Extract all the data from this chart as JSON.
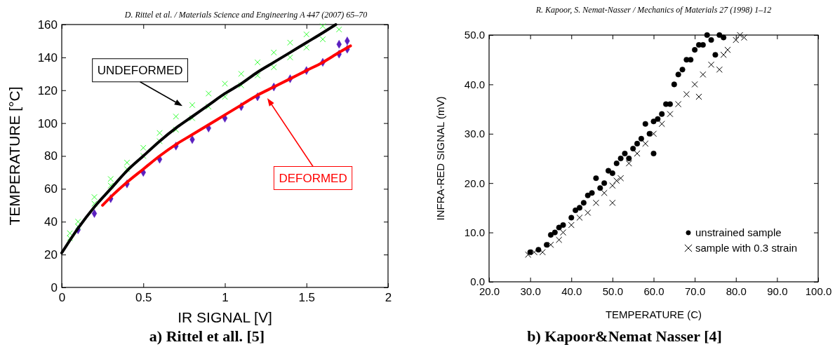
{
  "chart_data": [
    {
      "type": "scatter",
      "title": "a) Rittel et all. [5]",
      "subtitle": "D. Rittel et al. / Materials Science and Engineering A 447 (2007) 65–70",
      "xlabel": "IR SIGNAL [V]",
      "ylabel": "TEMPERATURE [°C]",
      "xlim": [
        0,
        2
      ],
      "ylim": [
        0,
        160
      ],
      "xticks": [
        0,
        0.5,
        1,
        1.5,
        2
      ],
      "yticks": [
        0,
        20,
        40,
        60,
        80,
        100,
        120,
        140,
        160
      ],
      "grid": false,
      "legend": false,
      "annotations": [
        "UNDEFORMED",
        "DEFORMED"
      ],
      "series": [
        {
          "color": "#33ff33",
          "marker": "cross",
          "x": [
            0.05,
            0.1,
            0.2,
            0.3,
            0.4,
            0.5,
            0.6,
            0.7,
            0.8,
            0.9,
            1.0,
            1.1,
            1.2,
            1.3,
            1.4,
            1.5,
            1.6,
            0.05,
            0.1,
            0.2,
            0.3,
            0.4,
            0.5,
            0.6,
            0.7,
            0.8,
            0.9,
            1.0,
            1.1,
            1.2,
            1.3,
            1.4,
            1.5,
            1.6,
            1.7
          ],
          "values": [
            33,
            40,
            55,
            66,
            76,
            85,
            94,
            104,
            111,
            118,
            124,
            130,
            137,
            143,
            149,
            154,
            159,
            30,
            37,
            51,
            62,
            72,
            80,
            89,
            96,
            103,
            110,
            116,
            123,
            129,
            134,
            140,
            146,
            151,
            157
          ]
        },
        {
          "color": "#5a1fbf",
          "marker": "diamond",
          "x": [
            0.1,
            0.2,
            0.3,
            0.4,
            0.5,
            0.6,
            0.7,
            0.8,
            0.9,
            1.0,
            1.1,
            1.2,
            1.3,
            1.4,
            1.5,
            1.6,
            1.7,
            1.75,
            1.7,
            1.75
          ],
          "values": [
            35,
            45,
            54,
            63,
            70,
            78,
            86,
            90,
            97,
            103,
            110,
            116,
            122,
            127,
            132,
            137,
            142,
            145,
            148,
            150
          ]
        },
        {
          "type": "line",
          "color": "#000000",
          "marker": "none",
          "x": [
            0,
            0.1,
            0.2,
            0.3,
            0.4,
            0.5,
            0.6,
            0.7,
            0.8,
            0.9,
            1.0,
            1.1,
            1.2,
            1.3,
            1.4,
            1.5,
            1.6,
            1.68
          ],
          "values": [
            21,
            36,
            49,
            60,
            71,
            80,
            89,
            97,
            104,
            111,
            118,
            124,
            131,
            137,
            143,
            149,
            155,
            160
          ]
        },
        {
          "type": "line",
          "color": "#ff0000",
          "marker": "none",
          "x": [
            0.25,
            0.3,
            0.4,
            0.5,
            0.6,
            0.7,
            0.8,
            0.9,
            1.0,
            1.1,
            1.2,
            1.3,
            1.4,
            1.5,
            1.6,
            1.7,
            1.77
          ],
          "values": [
            50,
            55,
            64,
            72,
            80,
            87,
            93,
            99,
            105,
            111,
            117,
            122,
            127,
            132,
            137,
            143,
            147
          ]
        }
      ]
    },
    {
      "type": "scatter",
      "title": "b) Kapoor&Nemat Nasser [4]",
      "subtitle": "R. Kapoor, S. Nemat-Nasser / Mechanics of Materials 27 (1998) 1–12",
      "xlabel": "TEMPERATURE (C)",
      "ylabel": "INFRA-RED SIGNAL (mV)",
      "xlim": [
        20,
        100
      ],
      "ylim": [
        0,
        50
      ],
      "xticks": [
        {
          "value": 20,
          "label": "20.0"
        },
        {
          "value": 30,
          "label": "30.0"
        },
        {
          "value": 40,
          "label": "40.0"
        },
        {
          "value": 50,
          "label": "50.0"
        },
        {
          "value": 60,
          "label": "60.0"
        },
        {
          "value": 70,
          "label": "70.0"
        },
        {
          "value": 80,
          "label": "80.0"
        },
        {
          "value": 90,
          "label": "90.0"
        },
        {
          "value": 100,
          "label": "100.0"
        }
      ],
      "yticks": [
        {
          "value": 0,
          "label": "0.0"
        },
        {
          "value": 10,
          "label": "10.0"
        },
        {
          "value": 20,
          "label": "20.0"
        },
        {
          "value": 30,
          "label": "30.0"
        },
        {
          "value": 40,
          "label": "40.0"
        },
        {
          "value": 50,
          "label": "50.0"
        }
      ],
      "grid": false,
      "legend": "bottom right",
      "series": [
        {
          "name": "unstrained sample",
          "color": "#000000",
          "marker": "circle",
          "x": [
            30,
            32,
            34,
            35,
            36,
            37,
            38,
            40,
            41,
            42,
            43,
            44,
            45,
            46,
            47,
            48,
            49,
            50,
            51,
            52,
            53,
            54,
            55,
            56,
            57,
            58,
            59,
            60,
            60,
            61,
            62,
            63,
            64,
            65,
            66,
            67,
            68,
            69,
            70,
            71,
            72,
            73,
            74,
            75,
            76,
            77
          ],
          "values": [
            6,
            6.5,
            7.5,
            9.5,
            10,
            11,
            11.5,
            13,
            14.5,
            15,
            16,
            17.5,
            18,
            21,
            19,
            20,
            22.5,
            22,
            24,
            25,
            26,
            25,
            27,
            28,
            29,
            32,
            30,
            32.5,
            26,
            33,
            34,
            36,
            36,
            40,
            42,
            43,
            45,
            45,
            47,
            48,
            48,
            50,
            49,
            46,
            50,
            49.5
          ]
        },
        {
          "name": "sample with 0.3 strain",
          "color": "#000000",
          "marker": "cross",
          "x": [
            29.5,
            31,
            33,
            35,
            37,
            38,
            40,
            42,
            44,
            46,
            48,
            50,
            50,
            51,
            52,
            54,
            56,
            58,
            60,
            62,
            64,
            66,
            68,
            70,
            71,
            72,
            74,
            76,
            77,
            78,
            80,
            81,
            82
          ],
          "values": [
            5.5,
            6,
            6,
            7.5,
            8.5,
            10,
            11.5,
            13,
            14,
            16,
            18,
            16,
            19.5,
            20.5,
            21,
            24,
            26,
            28,
            30,
            32,
            34,
            36,
            38,
            40,
            37.5,
            42,
            44,
            43,
            46,
            47,
            49,
            50,
            49.5
          ]
        }
      ]
    }
  ]
}
